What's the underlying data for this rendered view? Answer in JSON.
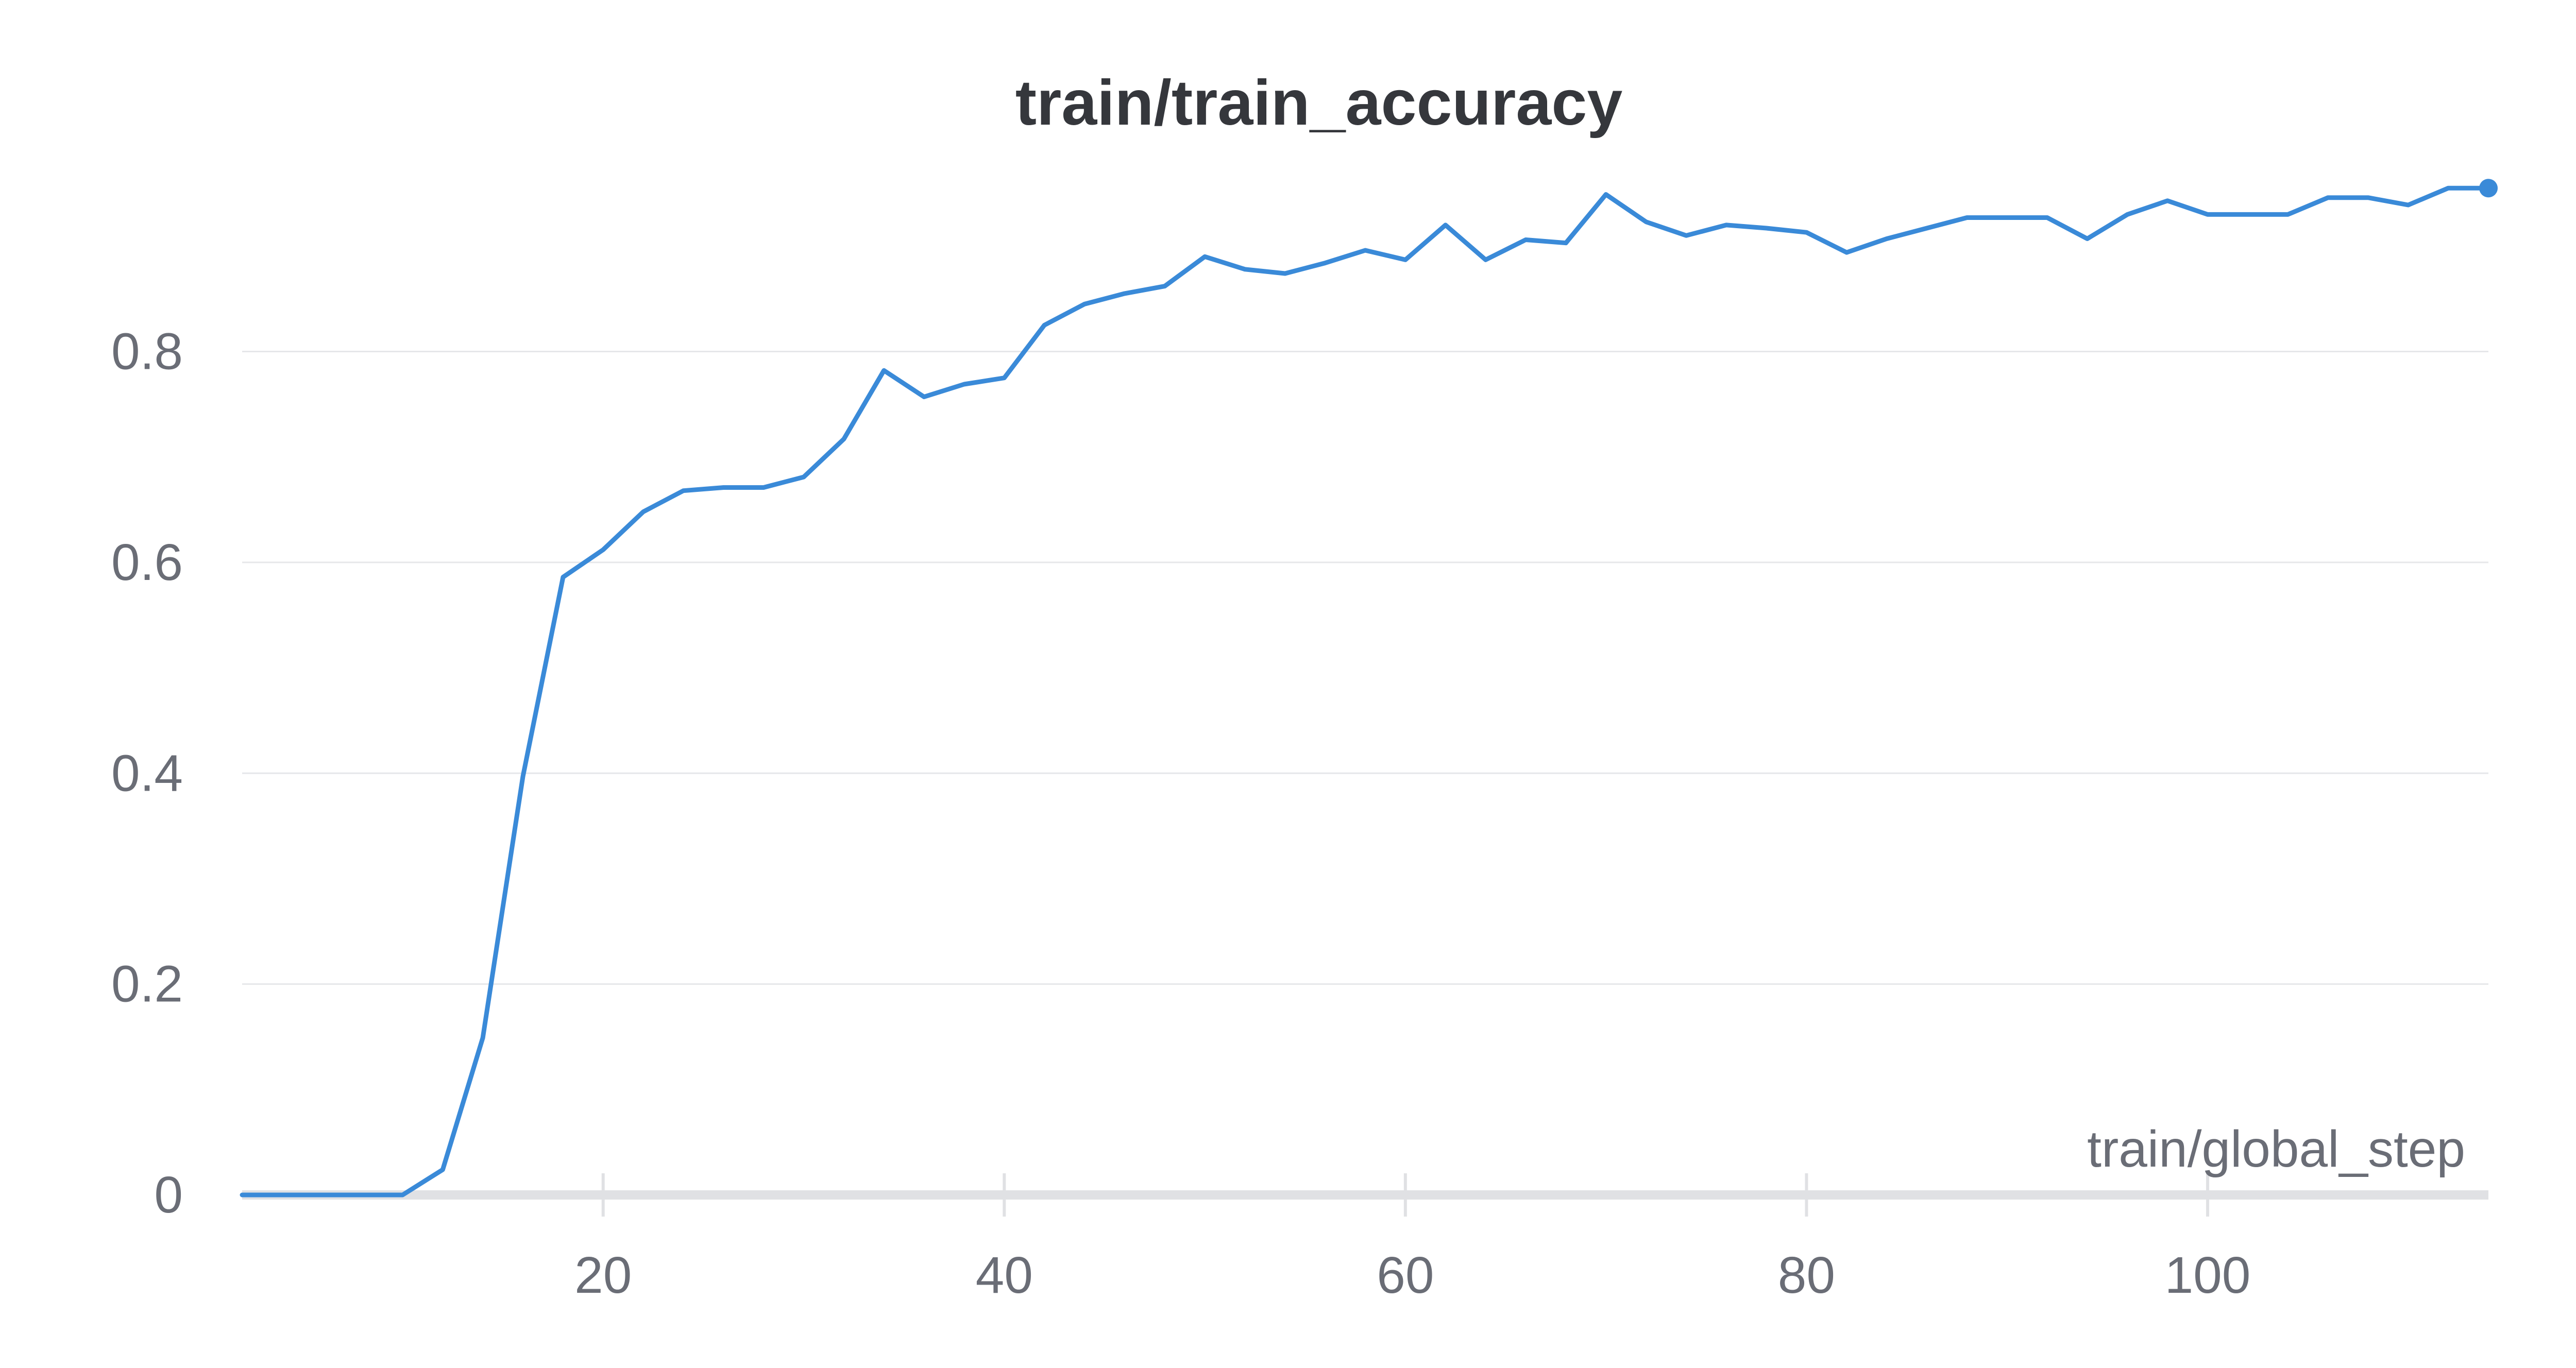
{
  "chart_data": {
    "type": "line",
    "title": "train/train_accuracy",
    "xlabel": "train/global_step",
    "ylabel": "",
    "xlim": [
      2,
      114
    ],
    "ylim": [
      0,
      0.96
    ],
    "x_ticks": [
      20,
      40,
      60,
      80,
      100
    ],
    "y_ticks": [
      0,
      0.2,
      0.4,
      0.6,
      0.8
    ],
    "x_tick_labels": [
      "20",
      "40",
      "60",
      "80",
      "100"
    ],
    "y_tick_labels": [
      "0",
      "0.2",
      "0.4",
      "0.6",
      "0.8"
    ],
    "grid": true,
    "legend": "none",
    "colors": {
      "series": "#3a8ad8",
      "grid": "#e6e7ea",
      "axis": "#e0e1e4",
      "text": "#6a6d76",
      "title": "#35373c"
    },
    "series": [
      {
        "x": [
          2,
          4,
          6,
          8,
          10,
          12,
          14,
          16,
          18,
          20,
          22,
          24,
          26,
          28,
          30,
          32,
          34,
          36,
          38,
          40,
          42,
          44,
          46,
          48,
          50,
          52,
          54,
          56,
          58,
          60,
          62,
          64,
          66,
          68,
          70,
          72,
          74,
          76,
          78,
          80,
          82,
          84,
          86,
          88,
          90,
          92,
          94,
          96,
          98,
          100,
          102,
          104,
          106,
          108,
          110,
          112,
          114
        ],
        "y": [
          0,
          0,
          0,
          0,
          0,
          0.024,
          0.149,
          0.397,
          0.586,
          0.612,
          0.648,
          0.668,
          0.671,
          0.671,
          0.681,
          0.717,
          0.782,
          0.757,
          0.769,
          0.775,
          0.825,
          0.845,
          0.855,
          0.862,
          0.89,
          0.878,
          0.874,
          0.884,
          0.896,
          0.887,
          0.92,
          0.887,
          0.906,
          0.903,
          0.949,
          0.923,
          0.91,
          0.92,
          0.917,
          0.913,
          0.894,
          0.907,
          0.917,
          0.927,
          0.927,
          0.927,
          0.907,
          0.93,
          0.943,
          0.93,
          0.93,
          0.93,
          0.946,
          0.946,
          0.939,
          0.955,
          0.955
        ]
      }
    ]
  }
}
